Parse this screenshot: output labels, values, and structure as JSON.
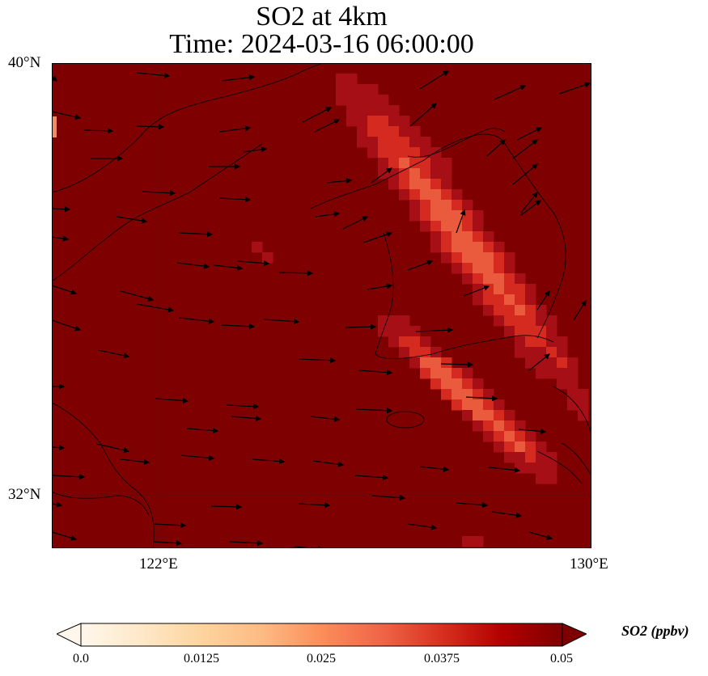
{
  "title": {
    "line1": "SO2 at 4km",
    "line2": "Time: 2024-03-16 06:00:00"
  },
  "map": {
    "lat_ticks": [
      "40°N",
      "32°N"
    ],
    "lon_ticks": [
      "122°E",
      "130°E"
    ],
    "lat_range": [
      31,
      40
    ],
    "lon_range": [
      120,
      130
    ],
    "gridlines": "dotted",
    "background_color": "#7f0000",
    "plume_colors": [
      "#a50f15",
      "#d42a1f",
      "#ea5b3d",
      "#f68a62"
    ]
  },
  "colorbar": {
    "label": "SO2 (ppbv)",
    "ticks": [
      "0.0",
      "0.0125",
      "0.025",
      "0.0375",
      "0.05"
    ],
    "range": [
      0.0,
      0.05
    ],
    "colormap": "OrRd",
    "extend": "both"
  }
}
